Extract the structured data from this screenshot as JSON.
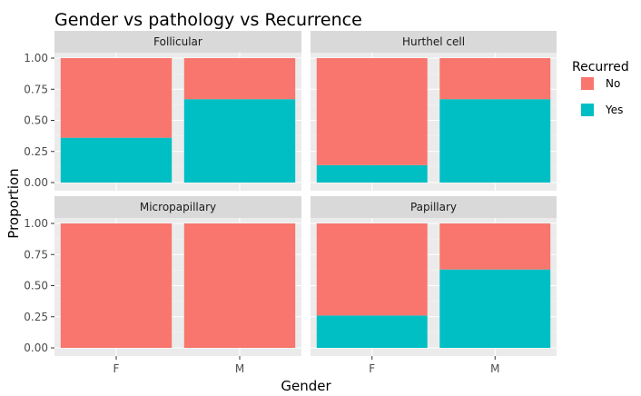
{
  "chart_data": {
    "type": "bar",
    "stacked": true,
    "title": "Gender vs pathology vs Recurrence",
    "xlabel": "Gender",
    "ylabel": "Proportion",
    "ylim": [
      0,
      1.0
    ],
    "y_ticks": [
      "0.00",
      "0.25",
      "0.50",
      "0.75",
      "1.00"
    ],
    "categories": [
      "F",
      "M"
    ],
    "legend": {
      "title": "Recurred",
      "placement": "right",
      "items": [
        {
          "label": "No",
          "color": "#F8766D"
        },
        {
          "label": "Yes",
          "color": "#00BFC4"
        }
      ]
    },
    "grid": true,
    "facets": [
      {
        "label": "Follicular",
        "series": [
          {
            "name": "No",
            "values": [
              0.64,
              0.33
            ]
          },
          {
            "name": "Yes",
            "values": [
              0.36,
              0.67
            ]
          }
        ]
      },
      {
        "label": "Hurthel cell",
        "series": [
          {
            "name": "No",
            "values": [
              0.86,
              0.33
            ]
          },
          {
            "name": "Yes",
            "values": [
              0.14,
              0.67
            ]
          }
        ]
      },
      {
        "label": "Micropapillary",
        "series": [
          {
            "name": "No",
            "values": [
              1.0,
              1.0
            ]
          },
          {
            "name": "Yes",
            "values": [
              0.0,
              0.0
            ]
          }
        ]
      },
      {
        "label": "Papillary",
        "series": [
          {
            "name": "No",
            "values": [
              0.74,
              0.37
            ]
          },
          {
            "name": "Yes",
            "values": [
              0.26,
              0.63
            ]
          }
        ]
      }
    ]
  }
}
